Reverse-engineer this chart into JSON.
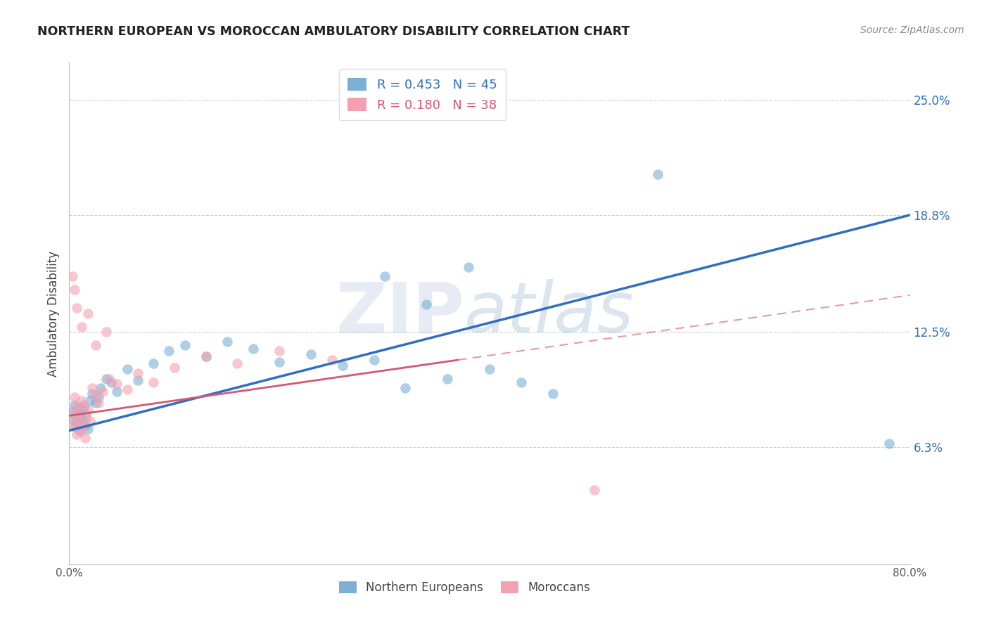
{
  "title": "NORTHERN EUROPEAN VS MOROCCAN AMBULATORY DISABILITY CORRELATION CHART",
  "source": "Source: ZipAtlas.com",
  "ylabel": "Ambulatory Disability",
  "watermark_zip": "ZIP",
  "watermark_atlas": "atlas",
  "xlim": [
    0.0,
    0.8
  ],
  "ylim": [
    0.0,
    0.27
  ],
  "yticks": [
    0.063,
    0.125,
    0.188,
    0.25
  ],
  "ytick_labels": [
    "6.3%",
    "12.5%",
    "18.8%",
    "25.0%"
  ],
  "xticks": [
    0.0,
    0.1,
    0.2,
    0.3,
    0.4,
    0.5,
    0.6,
    0.7,
    0.8
  ],
  "xtick_labels": [
    "0.0%",
    "",
    "",
    "",
    "",
    "",
    "",
    "",
    "80.0%"
  ],
  "blue_label": "Northern Europeans",
  "pink_label": "Moroccans",
  "blue_R": "0.453",
  "blue_N": "45",
  "pink_R": "0.180",
  "pink_N": "38",
  "blue_color": "#7BAFD4",
  "pink_color": "#F4A0B0",
  "blue_line_color": "#2F6FBF",
  "pink_line_color": "#D45870",
  "blue_scatter_x": [
    0.003,
    0.004,
    0.005,
    0.006,
    0.007,
    0.008,
    0.009,
    0.01,
    0.011,
    0.012,
    0.013,
    0.014,
    0.015,
    0.016,
    0.018,
    0.02,
    0.022,
    0.025,
    0.028,
    0.03,
    0.035,
    0.04,
    0.045,
    0.055,
    0.065,
    0.08,
    0.095,
    0.11,
    0.13,
    0.15,
    0.175,
    0.2,
    0.23,
    0.26,
    0.29,
    0.32,
    0.36,
    0.4,
    0.43,
    0.46,
    0.3,
    0.34,
    0.38,
    0.56,
    0.78
  ],
  "blue_scatter_y": [
    0.082,
    0.078,
    0.086,
    0.074,
    0.08,
    0.076,
    0.084,
    0.072,
    0.079,
    0.083,
    0.077,
    0.085,
    0.075,
    0.081,
    0.073,
    0.088,
    0.092,
    0.087,
    0.09,
    0.095,
    0.1,
    0.098,
    0.093,
    0.105,
    0.099,
    0.108,
    0.115,
    0.118,
    0.112,
    0.12,
    0.116,
    0.109,
    0.113,
    0.107,
    0.11,
    0.095,
    0.1,
    0.105,
    0.098,
    0.092,
    0.155,
    0.14,
    0.16,
    0.21,
    0.065
  ],
  "pink_scatter_x": [
    0.003,
    0.004,
    0.005,
    0.006,
    0.007,
    0.008,
    0.009,
    0.01,
    0.011,
    0.012,
    0.013,
    0.014,
    0.015,
    0.016,
    0.018,
    0.02,
    0.022,
    0.025,
    0.028,
    0.032,
    0.038,
    0.045,
    0.055,
    0.065,
    0.08,
    0.1,
    0.13,
    0.16,
    0.2,
    0.25,
    0.003,
    0.005,
    0.007,
    0.012,
    0.018,
    0.025,
    0.035,
    0.5
  ],
  "pink_scatter_y": [
    0.08,
    0.075,
    0.09,
    0.085,
    0.07,
    0.078,
    0.082,
    0.076,
    0.072,
    0.088,
    0.074,
    0.086,
    0.068,
    0.079,
    0.083,
    0.077,
    0.095,
    0.091,
    0.087,
    0.093,
    0.1,
    0.097,
    0.094,
    0.103,
    0.098,
    0.106,
    0.112,
    0.108,
    0.115,
    0.11,
    0.155,
    0.148,
    0.138,
    0.128,
    0.135,
    0.118,
    0.125,
    0.04
  ],
  "blue_line_x0": 0.0,
  "blue_line_y0": 0.072,
  "blue_line_x1": 0.8,
  "blue_line_y1": 0.188,
  "pink_line_x0": 0.0,
  "pink_line_y0": 0.08,
  "pink_line_x1": 0.37,
  "pink_line_y1": 0.11
}
